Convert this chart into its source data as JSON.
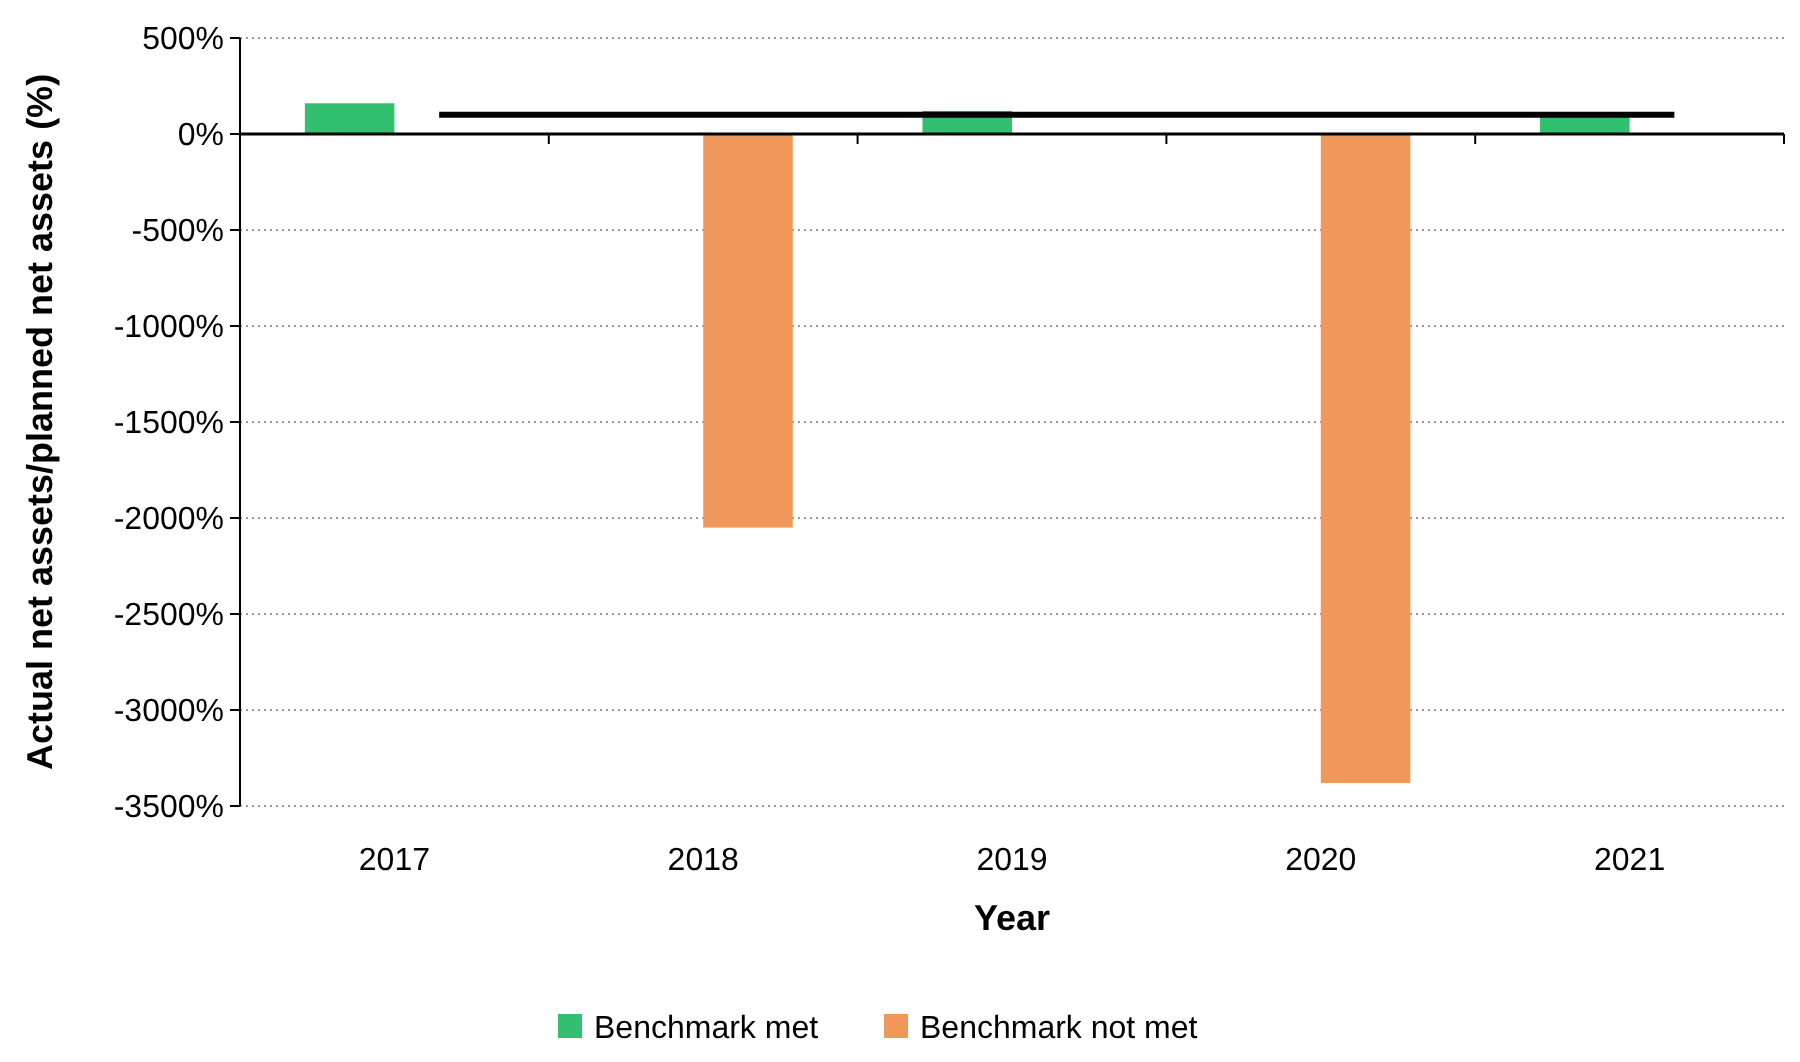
{
  "chart_data": {
    "type": "bar",
    "xlabel": "Year",
    "ylabel": "Actual net assets/planned net assets  (%)",
    "categories": [
      "2017",
      "2018",
      "2019",
      "2020",
      "2021"
    ],
    "series": [
      {
        "name": "Benchmark met",
        "color": "#33bf70",
        "values": [
          160,
          null,
          120,
          null,
          100
        ]
      },
      {
        "name": "Benchmark not met",
        "color": "#f0985a",
        "values": [
          null,
          -2050,
          null,
          -3380,
          null
        ]
      },
      {
        "type": "line",
        "color": "#000000",
        "values": [
          100,
          100,
          100,
          100,
          100
        ]
      }
    ],
    "ylim": [
      -3500,
      500
    ],
    "yticks": [
      {
        "value": 500,
        "label": "500%"
      },
      {
        "value": 0,
        "label": "0%"
      },
      {
        "value": -500,
        "label": "-500%"
      },
      {
        "value": -1000,
        "label": "-1000%"
      },
      {
        "value": -1500,
        "label": "-1500%"
      },
      {
        "value": -2000,
        "label": "-2000%"
      },
      {
        "value": -2500,
        "label": "-2500%"
      },
      {
        "value": -3000,
        "label": "-3000%"
      },
      {
        "value": -3500,
        "label": "-3500%"
      }
    ],
    "grid": "y",
    "legend": "bottom",
    "marker": "none",
    "line_style": "solid"
  }
}
